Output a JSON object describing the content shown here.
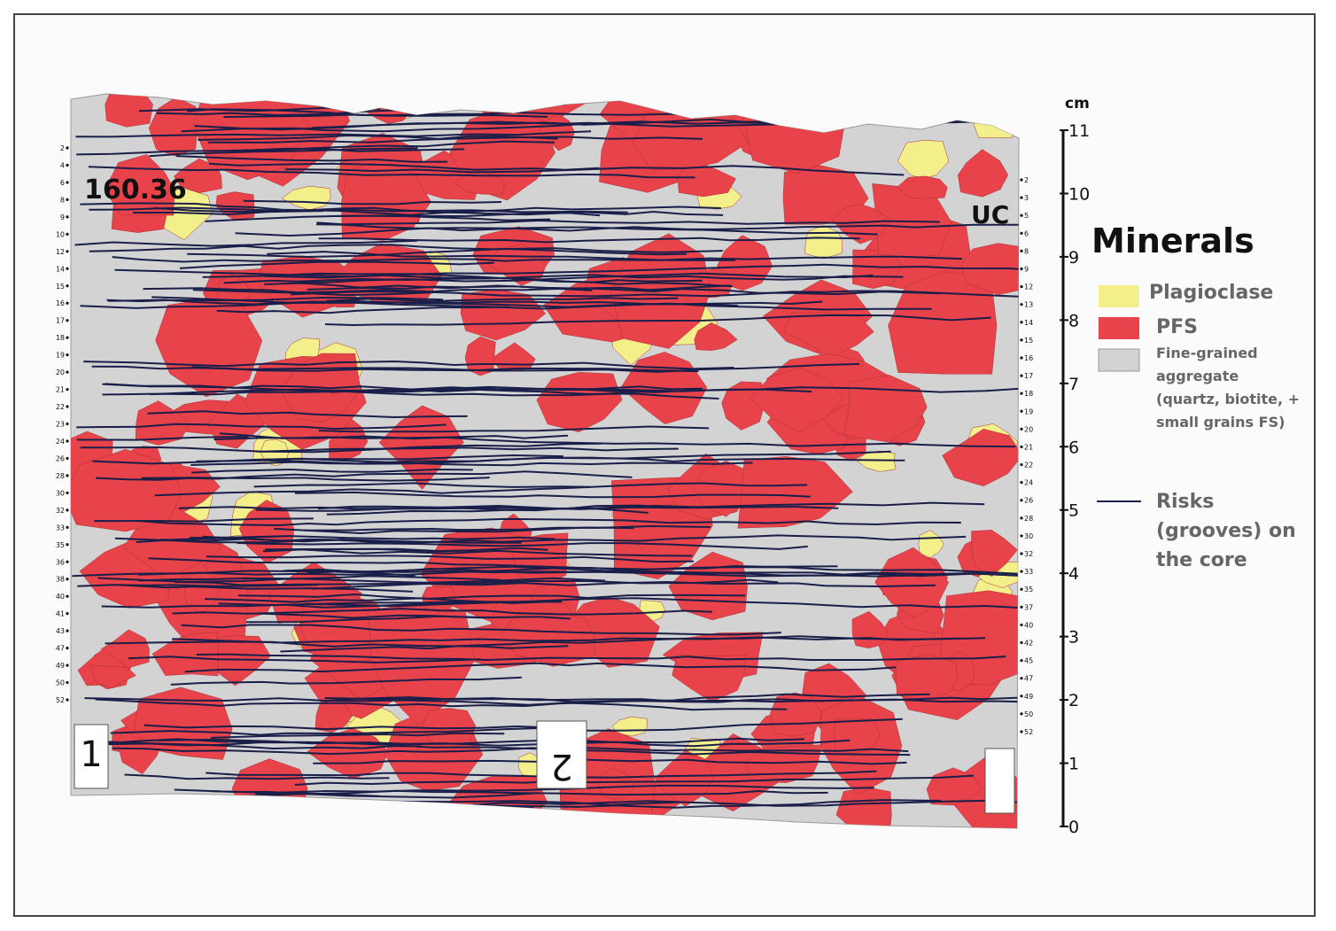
{
  "core_labels": {
    "depth": "160.36",
    "corner": "UC",
    "piece_1": "1",
    "piece_2": "2"
  },
  "left_marks": [
    "2",
    "4",
    "6",
    "8",
    "9",
    "10",
    "12",
    "14",
    "15",
    "16",
    "17",
    "18",
    "19",
    "20",
    "21",
    "22",
    "23",
    "24",
    "26",
    "28",
    "30",
    "32",
    "33",
    "35",
    "36",
    "38",
    "40",
    "41",
    "43",
    "47",
    "49",
    "50",
    "52"
  ],
  "right_marks": [
    "2",
    "3",
    "5",
    "6",
    "8",
    "9",
    "12",
    "13",
    "14",
    "15",
    "16",
    "17",
    "18",
    "19",
    "20",
    "21",
    "22",
    "24",
    "26",
    "28",
    "30",
    "32",
    "33",
    "35",
    "37",
    "40",
    "42",
    "45",
    "47",
    "49",
    "50",
    "52"
  ],
  "scale": {
    "unit": "cm",
    "lim": [
      0,
      11
    ],
    "ticks": [
      0,
      1,
      2,
      3,
      4,
      5,
      6,
      7,
      8,
      9,
      10,
      11
    ]
  },
  "legend": {
    "title": "Minerals",
    "items": [
      {
        "label": "Plagioclase",
        "color": "#f3f08c"
      },
      {
        "label": "PFS",
        "color": "#e8424a"
      },
      {
        "label": "Fine-grained aggregate (quartz, biotite, + small grains FS)",
        "color": "#d3d3d3"
      },
      {
        "label": "Risks (grooves) on the core",
        "color": "#1a1f4a"
      }
    ]
  }
}
